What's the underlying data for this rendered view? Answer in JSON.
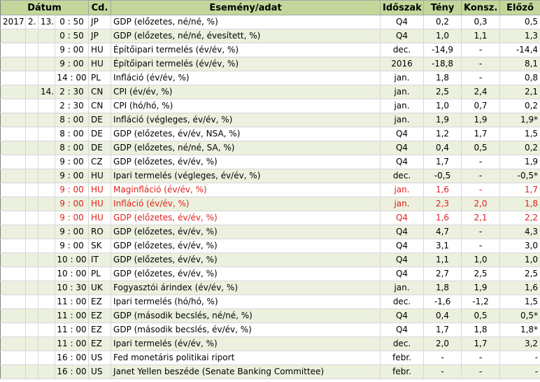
{
  "headers": {
    "datum": "Dátum",
    "cd": "Cd.",
    "event": "Esemény/adat",
    "period": "Időszak",
    "actual": "Tény",
    "consensus": "Konsz.",
    "previous": "Előző"
  },
  "rows": [
    {
      "year": "2017",
      "month": "2.",
      "day": "13.",
      "time": "0 : 50",
      "cd": "JP",
      "event": "GDP (előzetes, né/né, %)",
      "period": "Q4",
      "actual": "0,2",
      "consensus": "0,3",
      "previous": "0,5",
      "highlight": false
    },
    {
      "year": "",
      "month": "",
      "day": "",
      "time": "0 : 50",
      "cd": "JP",
      "event": "GDP (előzetes, né/né, évesített, %)",
      "period": "Q4",
      "actual": "1,0",
      "consensus": "1,1",
      "previous": "1,3",
      "highlight": false
    },
    {
      "year": "",
      "month": "",
      "day": "",
      "time": "9 : 00",
      "cd": "HU",
      "event": "Építőipari termelés (év/év, %)",
      "period": "dec.",
      "actual": "-14,9",
      "consensus": "-",
      "previous": "-14,4",
      "highlight": false
    },
    {
      "year": "",
      "month": "",
      "day": "",
      "time": "9 : 00",
      "cd": "HU",
      "event": "Építőipari termelés (év/év, %)",
      "period": "2016",
      "actual": "-18,8",
      "consensus": "-",
      "previous": "8,1",
      "highlight": false
    },
    {
      "year": "",
      "month": "",
      "day": "",
      "time": "14 : 00",
      "cd": "PL",
      "event": "Infláció (év/év, %)",
      "period": "jan.",
      "actual": "1,8",
      "consensus": "-",
      "previous": "0,8",
      "highlight": false
    },
    {
      "year": "",
      "month": "",
      "day": "14.",
      "time": "2 : 30",
      "cd": "CN",
      "event": "CPI (év/év, %)",
      "period": "jan.",
      "actual": "2,5",
      "consensus": "2,4",
      "previous": "2,1",
      "highlight": false
    },
    {
      "year": "",
      "month": "",
      "day": "",
      "time": "2 : 30",
      "cd": "CN",
      "event": "CPI (hó/hó, %)",
      "period": "jan.",
      "actual": "1,0",
      "consensus": "0,7",
      "previous": "0,2",
      "highlight": false
    },
    {
      "year": "",
      "month": "",
      "day": "",
      "time": "8 : 00",
      "cd": "DE",
      "event": "Infláció (végleges, év/év, %)",
      "period": "jan.",
      "actual": "1,9",
      "consensus": "1,9",
      "previous": "1,9*",
      "highlight": false
    },
    {
      "year": "",
      "month": "",
      "day": "",
      "time": "8 : 00",
      "cd": "DE",
      "event": "GDP (előzetes, év/év, NSA, %)",
      "period": "Q4",
      "actual": "1,2",
      "consensus": "1,7",
      "previous": "1,5",
      "highlight": false
    },
    {
      "year": "",
      "month": "",
      "day": "",
      "time": "8 : 00",
      "cd": "DE",
      "event": "GDP (előzetes, né/né, SA, %)",
      "period": "Q4",
      "actual": "0,4",
      "consensus": "0,5",
      "previous": "0,2",
      "highlight": false
    },
    {
      "year": "",
      "month": "",
      "day": "",
      "time": "9 : 00",
      "cd": "CZ",
      "event": "GDP (előzetes, év/év, %)",
      "period": "Q4",
      "actual": "1,7",
      "consensus": "-",
      "previous": "1,9",
      "highlight": false
    },
    {
      "year": "",
      "month": "",
      "day": "",
      "time": "9 : 00",
      "cd": "HU",
      "event": "Ipari termelés (végleges, év/év, %)",
      "period": "dec.",
      "actual": "-0,5",
      "consensus": "-",
      "previous": "-0,5*",
      "highlight": false
    },
    {
      "year": "",
      "month": "",
      "day": "",
      "time": "9 : 00",
      "cd": "HU",
      "event": "Maginfláció (év/év, %)",
      "period": "jan.",
      "actual": "1,6",
      "consensus": "-",
      "previous": "1,7",
      "highlight": true
    },
    {
      "year": "",
      "month": "",
      "day": "",
      "time": "9 : 00",
      "cd": "HU",
      "event": "Infláció (év/év, %)",
      "period": "jan.",
      "actual": "2,3",
      "consensus": "2,0",
      "previous": "1,8",
      "highlight": true
    },
    {
      "year": "",
      "month": "",
      "day": "",
      "time": "9 : 00",
      "cd": "HU",
      "event": "GDP (előzetes, év/év, %)",
      "period": "Q4",
      "actual": "1,6",
      "consensus": "2,1",
      "previous": "2,2",
      "highlight": true
    },
    {
      "year": "",
      "month": "",
      "day": "",
      "time": "9 : 00",
      "cd": "RO",
      "event": "GDP (előzetes, év/év, %)",
      "period": "Q4",
      "actual": "4,7",
      "consensus": "-",
      "previous": "4,3",
      "highlight": false
    },
    {
      "year": "",
      "month": "",
      "day": "",
      "time": "9 : 00",
      "cd": "SK",
      "event": "GDP (előzetes, év/év, %)",
      "period": "Q4",
      "actual": "3,1",
      "consensus": "-",
      "previous": "3,0",
      "highlight": false
    },
    {
      "year": "",
      "month": "",
      "day": "",
      "time": "10 : 00",
      "cd": "IT",
      "event": "GDP (előzetes, év/év, %)",
      "period": "Q4",
      "actual": "1,1",
      "consensus": "1,0",
      "previous": "1,0",
      "highlight": false
    },
    {
      "year": "",
      "month": "",
      "day": "",
      "time": "10 : 00",
      "cd": "PL",
      "event": "GDP (előzetes, év/év, %)",
      "period": "Q4",
      "actual": "2,7",
      "consensus": "2,5",
      "previous": "2,5",
      "highlight": false
    },
    {
      "year": "",
      "month": "",
      "day": "",
      "time": "10 : 30",
      "cd": "UK",
      "event": "Fogyasztói árindex (év/év, %)",
      "period": "jan.",
      "actual": "1,8",
      "consensus": "1,9",
      "previous": "1,6",
      "highlight": false
    },
    {
      "year": "",
      "month": "",
      "day": "",
      "time": "11 : 00",
      "cd": "EZ",
      "event": "Ipari termelés (hó/hó, %)",
      "period": "dec.",
      "actual": "-1,6",
      "consensus": "-1,2",
      "previous": "1,5",
      "highlight": false
    },
    {
      "year": "",
      "month": "",
      "day": "",
      "time": "11 : 00",
      "cd": "EZ",
      "event": "GDP (második becslés, né/né, %)",
      "period": "Q4",
      "actual": "0,4",
      "consensus": "0,5",
      "previous": "0,5*",
      "highlight": false
    },
    {
      "year": "",
      "month": "",
      "day": "",
      "time": "11 : 00",
      "cd": "EZ",
      "event": "GDP (második becslés, év/év, %)",
      "period": "Q4",
      "actual": "1,7",
      "consensus": "1,8",
      "previous": "1,8*",
      "highlight": false
    },
    {
      "year": "",
      "month": "",
      "day": "",
      "time": "11 : 00",
      "cd": "EZ",
      "event": "Ipari termelés (év/év, %)",
      "period": "dec.",
      "actual": "2,0",
      "consensus": "1,7",
      "previous": "3,2",
      "highlight": false
    },
    {
      "year": "",
      "month": "",
      "day": "",
      "time": "16 : 00",
      "cd": "US",
      "event": "Fed monetáris politikai riport",
      "period": "febr.",
      "actual": "-",
      "consensus": "-",
      "previous": "-",
      "highlight": false
    },
    {
      "year": "",
      "month": "",
      "day": "",
      "time": "16 : 00",
      "cd": "US",
      "event": "Janet Yellen beszéde (Senate Banking Committee)",
      "period": "febr.",
      "actual": "-",
      "consensus": "-",
      "previous": "-",
      "highlight": false
    }
  ]
}
